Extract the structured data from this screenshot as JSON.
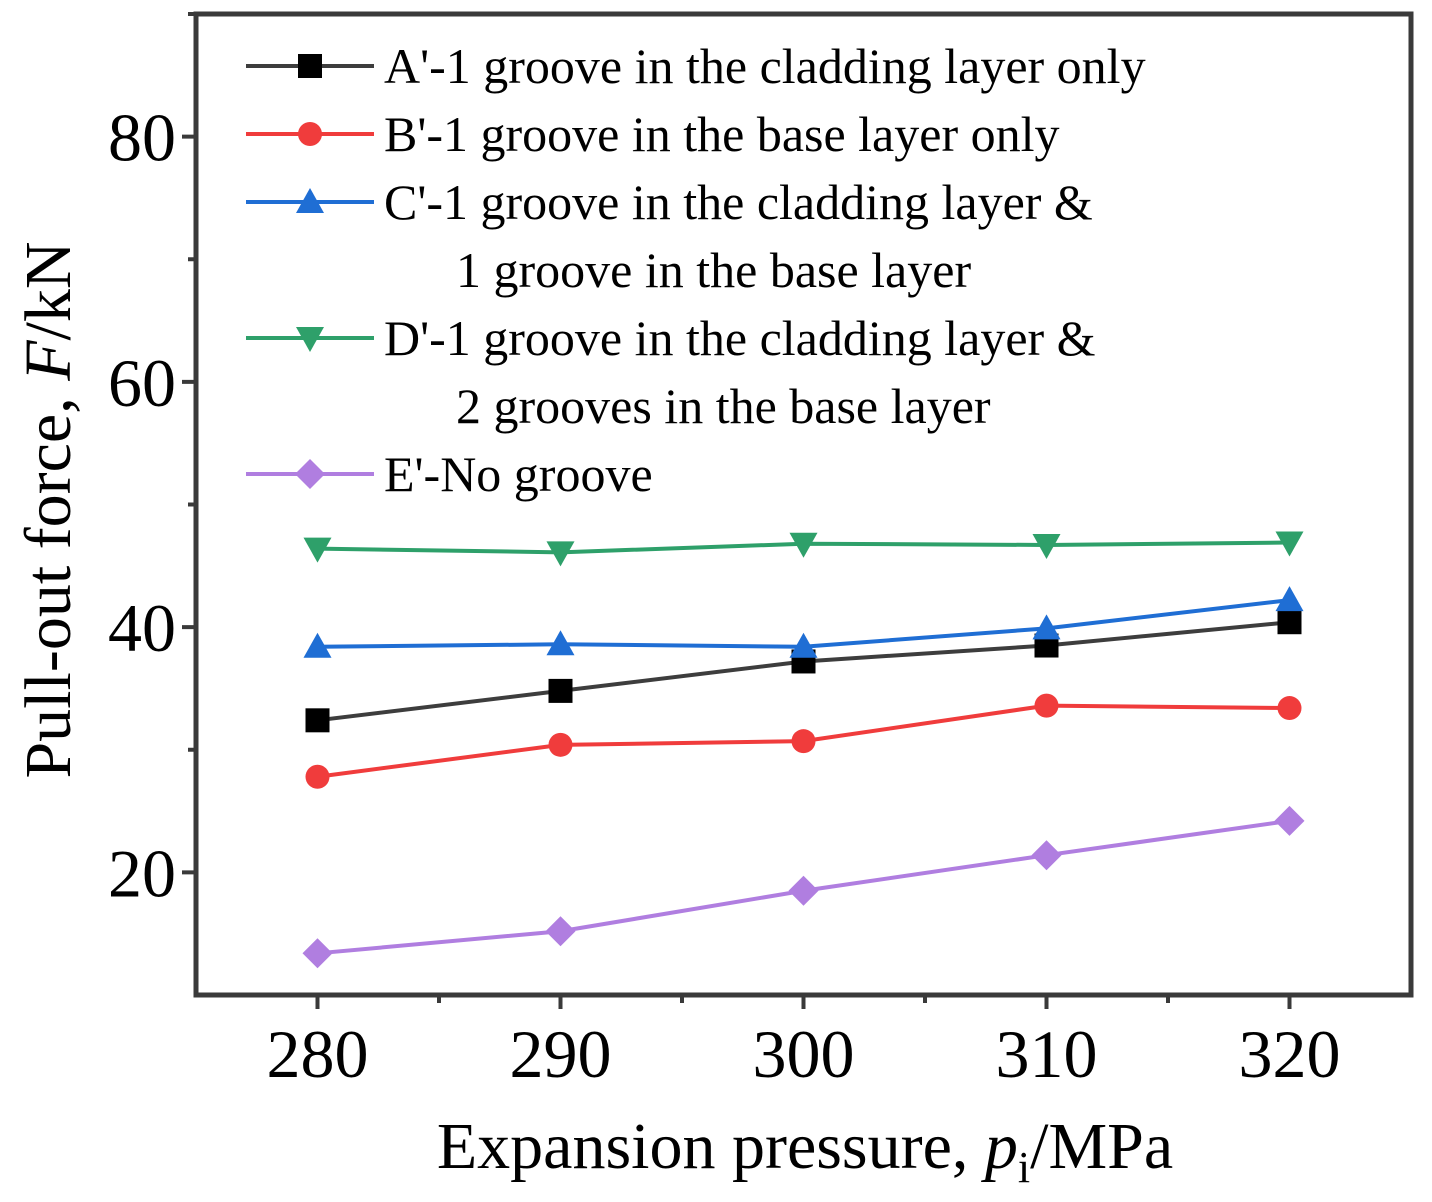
{
  "chart_data": {
    "type": "line",
    "title": "",
    "xlabel": "Expansion pressure, p",
    "xlabel_italic": "p",
    "xlabel_pre": "Expansion pressure, ",
    "xlabel_sub": "i",
    "xlabel_post": "/MPa",
    "ylabel_pre": "Pull-out force, ",
    "ylabel_italic": "F",
    "ylabel_post": "/kN",
    "x": [
      280,
      290,
      300,
      310,
      320
    ],
    "xlim": [
      275,
      325
    ],
    "ylim": [
      10,
      90
    ],
    "xticks": [
      "280",
      "290",
      "300",
      "310",
      "320"
    ],
    "yticks": [
      "20",
      "40",
      "60",
      "80"
    ],
    "grid": false,
    "legend_position": "top-left",
    "series": [
      {
        "name": "A'-1 groove in the cladding layer only",
        "label_lines": [
          "A'-1 groove in the cladding layer only"
        ],
        "marker": "square",
        "color": "#3d3d3d",
        "marker_color": "#000000",
        "values": [
          32.4,
          34.8,
          37.2,
          38.5,
          40.4
        ]
      },
      {
        "name": "B'-1 groove in the base layer only",
        "label_lines": [
          "B'-1 groove in the base layer only"
        ],
        "marker": "circle",
        "color": "#f03c3c",
        "marker_color": "#f03c3c",
        "values": [
          27.8,
          30.4,
          30.7,
          33.6,
          33.4
        ]
      },
      {
        "name": "C'-1 groove in the cladding layer & 1 groove in the base layer",
        "label_lines": [
          "C'-1 groove in the cladding layer &",
          "1 groove in the base layer"
        ],
        "marker": "triangle-up",
        "color": "#1f6ed4",
        "marker_color": "#1f6ed4",
        "values": [
          38.4,
          38.6,
          38.4,
          39.9,
          42.2
        ]
      },
      {
        "name": "D'-1 groove in the cladding layer & 2 grooves in the base layer",
        "label_lines": [
          "D'-1 groove in the cladding layer &",
          "2 grooves in the base layer"
        ],
        "marker": "triangle-down",
        "color": "#2ea06a",
        "marker_color": "#2ea06a",
        "values": [
          46.4,
          46.1,
          46.8,
          46.7,
          46.9
        ]
      },
      {
        "name": "E'-No groove",
        "label_lines": [
          "E'-No groove"
        ],
        "marker": "diamond",
        "color": "#b07ee0",
        "marker_color": "#b07ee0",
        "values": [
          13.4,
          15.2,
          18.5,
          21.4,
          24.2
        ]
      }
    ]
  }
}
